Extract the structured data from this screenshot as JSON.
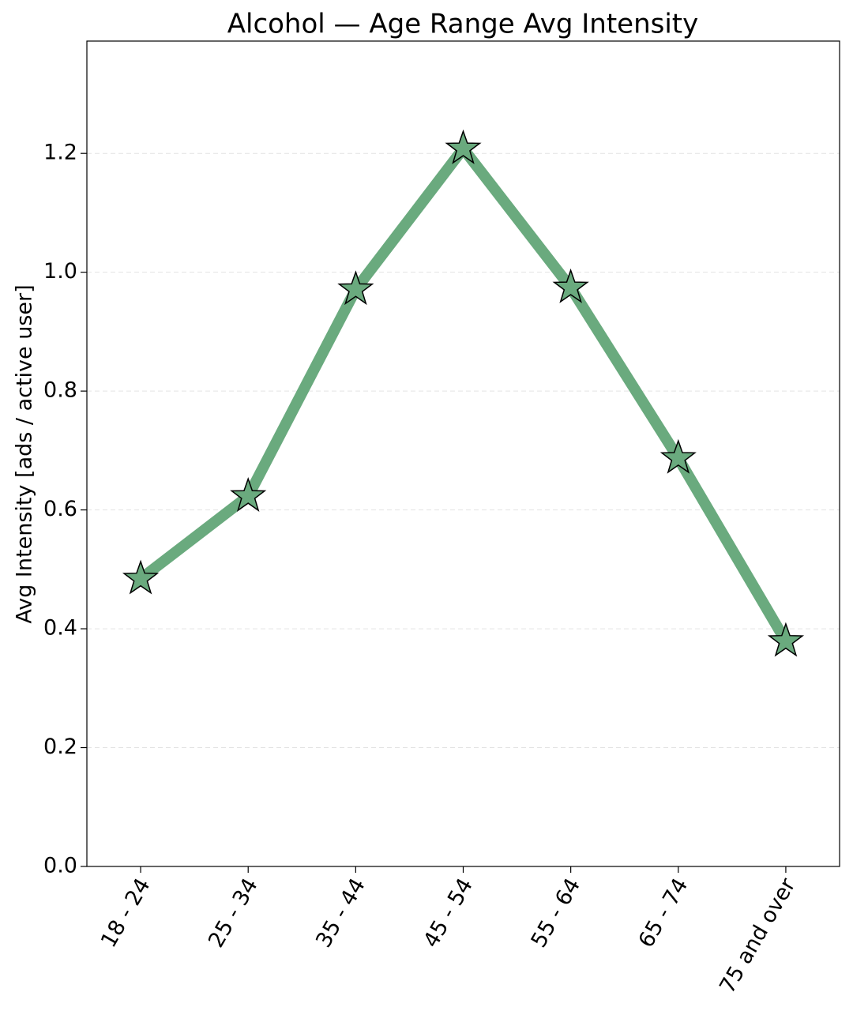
{
  "chart_data": {
    "type": "line",
    "title": "Alcohol — Age Range Avg Intensity",
    "y_label": "Avg Intensity [ads / active user]",
    "categories": [
      "18 - 24",
      "25 - 34",
      "35 - 44",
      "45 - 54",
      "55 - 64",
      "65 - 74",
      "75 and over"
    ],
    "values": [
      0.484,
      0.623,
      0.971,
      1.208,
      0.974,
      0.687,
      0.379
    ],
    "color": "#6aaa7e",
    "marker": "star",
    "ylim": [
      0,
      1.389
    ],
    "yticks": [
      {
        "value": 0,
        "label": "0.0"
      },
      0.2,
      0.4,
      0.6,
      0.8,
      {
        "value": 1,
        "label": "1.0"
      },
      1.2
    ],
    "grid": true
  }
}
